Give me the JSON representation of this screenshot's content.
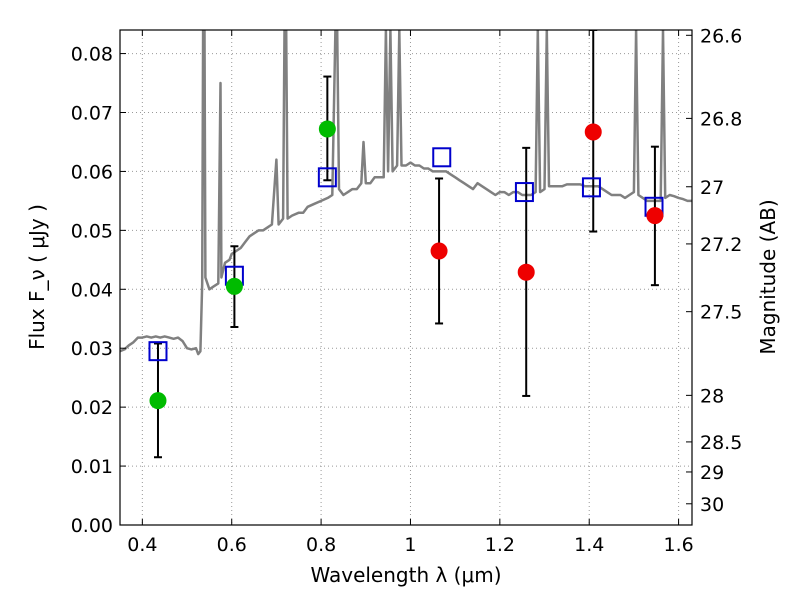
{
  "chart_data": {
    "type": "scatter",
    "xlabel": "Wavelength  λ (μm)",
    "ylabel": "Flux  F_ν  ( μJy )",
    "ylabel_right": "Magnitude (AB)",
    "xlim": [
      0.35,
      1.63
    ],
    "ylim": [
      0.0,
      0.084
    ],
    "grid": true,
    "x_ticks": [
      0.4,
      0.6,
      0.8,
      1.0,
      1.2,
      1.4,
      1.6
    ],
    "x_tick_labels": [
      "0.4",
      "0.6",
      "0.8",
      "1",
      "1.2",
      "1.4",
      "1.6"
    ],
    "y_ticks": [
      0.0,
      0.01,
      0.02,
      0.03,
      0.04,
      0.05,
      0.06,
      0.07,
      0.08
    ],
    "y_tick_labels": [
      "0.00",
      "0.01",
      "0.02",
      "0.03",
      "0.04",
      "0.05",
      "0.06",
      "0.07",
      "0.08"
    ],
    "right_ticks": [
      {
        "label": "26.6",
        "flux": 0.0831
      },
      {
        "label": "26.8",
        "flux": 0.069
      },
      {
        "label": "27",
        "flux": 0.0574
      },
      {
        "label": "27.2",
        "flux": 0.0477
      },
      {
        "label": "27.5",
        "flux": 0.0362
      },
      {
        "label": "28",
        "flux": 0.022
      },
      {
        "label": "28.5",
        "flux": 0.0141
      },
      {
        "label": "29",
        "flux": 0.009
      },
      {
        "label": "30",
        "flux": 0.0036
      }
    ],
    "colors": {
      "spectrum": "#808080",
      "model": "#0000cc",
      "green": "#00bb00",
      "red": "#ee0000",
      "errorbar": "#000000",
      "grid": "#999999"
    },
    "spectrum": [
      [
        0.35,
        0.0295
      ],
      [
        0.36,
        0.0298
      ],
      [
        0.37,
        0.0305
      ],
      [
        0.38,
        0.031
      ],
      [
        0.39,
        0.0318
      ],
      [
        0.4,
        0.0318
      ],
      [
        0.41,
        0.032
      ],
      [
        0.42,
        0.0318
      ],
      [
        0.43,
        0.032
      ],
      [
        0.44,
        0.0318
      ],
      [
        0.45,
        0.032
      ],
      [
        0.46,
        0.0318
      ],
      [
        0.47,
        0.0316
      ],
      [
        0.48,
        0.0318
      ],
      [
        0.49,
        0.0312
      ],
      [
        0.5,
        0.03
      ],
      [
        0.51,
        0.0298
      ],
      [
        0.52,
        0.03
      ],
      [
        0.525,
        0.029
      ],
      [
        0.53,
        0.0295
      ],
      [
        0.534,
        0.041
      ],
      [
        0.536,
        0.084
      ],
      [
        0.539,
        0.084
      ],
      [
        0.541,
        0.042
      ],
      [
        0.55,
        0.04
      ],
      [
        0.56,
        0.0405
      ],
      [
        0.57,
        0.041
      ],
      [
        0.575,
        0.075
      ],
      [
        0.577,
        0.042
      ],
      [
        0.585,
        0.0445
      ],
      [
        0.595,
        0.045
      ],
      [
        0.6,
        0.046
      ],
      [
        0.61,
        0.0465
      ],
      [
        0.62,
        0.047
      ],
      [
        0.63,
        0.048
      ],
      [
        0.64,
        0.049
      ],
      [
        0.65,
        0.0495
      ],
      [
        0.66,
        0.05
      ],
      [
        0.67,
        0.05
      ],
      [
        0.68,
        0.0505
      ],
      [
        0.69,
        0.051
      ],
      [
        0.7,
        0.062
      ],
      [
        0.705,
        0.051
      ],
      [
        0.715,
        0.052
      ],
      [
        0.718,
        0.084
      ],
      [
        0.722,
        0.084
      ],
      [
        0.725,
        0.052
      ],
      [
        0.735,
        0.0525
      ],
      [
        0.75,
        0.053
      ],
      [
        0.76,
        0.053
      ],
      [
        0.77,
        0.054
      ],
      [
        0.785,
        0.0545
      ],
      [
        0.8,
        0.055
      ],
      [
        0.815,
        0.0555
      ],
      [
        0.825,
        0.056
      ],
      [
        0.832,
        0.084
      ],
      [
        0.836,
        0.084
      ],
      [
        0.84,
        0.057
      ],
      [
        0.85,
        0.056
      ],
      [
        0.86,
        0.0565
      ],
      [
        0.87,
        0.057
      ],
      [
        0.88,
        0.057
      ],
      [
        0.89,
        0.058
      ],
      [
        0.895,
        0.065
      ],
      [
        0.9,
        0.058
      ],
      [
        0.91,
        0.058
      ],
      [
        0.92,
        0.059
      ],
      [
        0.93,
        0.059
      ],
      [
        0.94,
        0.059
      ],
      [
        0.945,
        0.084
      ],
      [
        0.95,
        0.06
      ],
      [
        0.955,
        0.084
      ],
      [
        0.96,
        0.06
      ],
      [
        0.97,
        0.061
      ],
      [
        0.975,
        0.084
      ],
      [
        0.98,
        0.061
      ],
      [
        0.99,
        0.061
      ],
      [
        1.0,
        0.0615
      ],
      [
        1.01,
        0.061
      ],
      [
        1.02,
        0.061
      ],
      [
        1.03,
        0.0605
      ],
      [
        1.04,
        0.0605
      ],
      [
        1.05,
        0.06
      ],
      [
        1.06,
        0.06
      ],
      [
        1.07,
        0.06
      ],
      [
        1.08,
        0.06
      ],
      [
        1.09,
        0.0595
      ],
      [
        1.1,
        0.059
      ],
      [
        1.11,
        0.0585
      ],
      [
        1.12,
        0.058
      ],
      [
        1.13,
        0.0575
      ],
      [
        1.14,
        0.057
      ],
      [
        1.15,
        0.058
      ],
      [
        1.16,
        0.0575
      ],
      [
        1.17,
        0.057
      ],
      [
        1.18,
        0.0565
      ],
      [
        1.19,
        0.056
      ],
      [
        1.2,
        0.0565
      ],
      [
        1.21,
        0.0565
      ],
      [
        1.22,
        0.056
      ],
      [
        1.23,
        0.0565
      ],
      [
        1.24,
        0.0565
      ],
      [
        1.25,
        0.056
      ],
      [
        1.26,
        0.056
      ],
      [
        1.27,
        0.056
      ],
      [
        1.28,
        0.0565
      ],
      [
        1.285,
        0.084
      ],
      [
        1.29,
        0.0565
      ],
      [
        1.3,
        0.057
      ],
      [
        1.305,
        0.084
      ],
      [
        1.31,
        0.0575
      ],
      [
        1.32,
        0.0575
      ],
      [
        1.33,
        0.0575
      ],
      [
        1.34,
        0.0575
      ],
      [
        1.35,
        0.0578
      ],
      [
        1.36,
        0.0578
      ],
      [
        1.37,
        0.0578
      ],
      [
        1.38,
        0.0578
      ],
      [
        1.39,
        0.0575
      ],
      [
        1.4,
        0.0575
      ],
      [
        1.41,
        0.0575
      ],
      [
        1.42,
        0.0575
      ],
      [
        1.43,
        0.057
      ],
      [
        1.44,
        0.0565
      ],
      [
        1.45,
        0.056
      ],
      [
        1.46,
        0.056
      ],
      [
        1.47,
        0.056
      ],
      [
        1.48,
        0.0555
      ],
      [
        1.49,
        0.056
      ],
      [
        1.5,
        0.0565
      ],
      [
        1.505,
        0.084
      ],
      [
        1.51,
        0.056
      ],
      [
        1.52,
        0.0555
      ],
      [
        1.53,
        0.055
      ],
      [
        1.54,
        0.055
      ],
      [
        1.55,
        0.055
      ],
      [
        1.56,
        0.055
      ],
      [
        1.565,
        0.084
      ],
      [
        1.57,
        0.0555
      ],
      [
        1.58,
        0.056
      ],
      [
        1.59,
        0.0558
      ],
      [
        1.6,
        0.0555
      ],
      [
        1.61,
        0.0553
      ],
      [
        1.62,
        0.055
      ],
      [
        1.63,
        0.055
      ]
    ],
    "model_points": [
      {
        "x": 0.435,
        "y": 0.0295
      },
      {
        "x": 0.606,
        "y": 0.0423
      },
      {
        "x": 0.814,
        "y": 0.059
      },
      {
        "x": 1.07,
        "y": 0.0624
      },
      {
        "x": 1.255,
        "y": 0.0565
      },
      {
        "x": 1.405,
        "y": 0.0573
      },
      {
        "x": 1.545,
        "y": 0.054
      }
    ],
    "green_points": [
      {
        "x": 0.435,
        "y": 0.0211,
        "yerr_low": 0.0115,
        "yerr_high": 0.0308
      },
      {
        "x": 0.606,
        "y": 0.0405,
        "yerr_low": 0.0336,
        "yerr_high": 0.0473
      },
      {
        "x": 0.814,
        "y": 0.0672,
        "yerr_low": 0.0585,
        "yerr_high": 0.0761
      }
    ],
    "red_points": [
      {
        "x": 1.064,
        "y": 0.0465,
        "yerr_low": 0.0342,
        "yerr_high": 0.0588
      },
      {
        "x": 1.259,
        "y": 0.0429,
        "yerr_low": 0.0219,
        "yerr_high": 0.064
      },
      {
        "x": 1.409,
        "y": 0.0667,
        "yerr_low": 0.0498,
        "yerr_high": 0.084
      },
      {
        "x": 1.547,
        "y": 0.0525,
        "yerr_low": 0.0407,
        "yerr_high": 0.0642
      }
    ]
  }
}
